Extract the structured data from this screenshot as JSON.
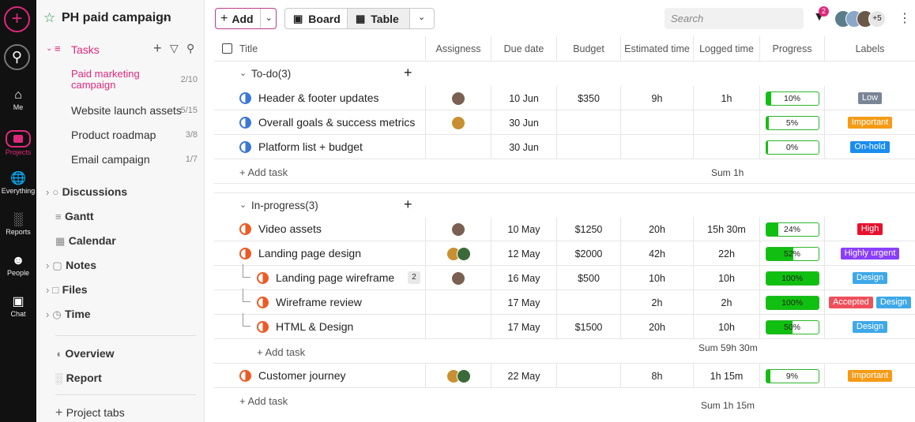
{
  "rail": {
    "items": [
      {
        "name": "add",
        "icon": "plus-icon",
        "label": ""
      },
      {
        "name": "search",
        "icon": "search-icon",
        "label": ""
      },
      {
        "name": "me",
        "icon": "home-icon",
        "label": "Me"
      },
      {
        "name": "projects",
        "icon": "folder-icon",
        "label": "Projects"
      },
      {
        "name": "everything",
        "icon": "globe-icon",
        "label": "Everything"
      },
      {
        "name": "reports",
        "icon": "bar-chart-icon",
        "label": "Reports"
      },
      {
        "name": "people",
        "icon": "people-icon",
        "label": "People"
      },
      {
        "name": "chat",
        "icon": "chat-icon",
        "label": "Chat"
      }
    ],
    "active_color": "#e0287a"
  },
  "sidebar": {
    "project_title": "PH paid campaign",
    "tasks_label": "Tasks",
    "task_lists": [
      {
        "label": "Paid marketing campaign",
        "count": "2/10",
        "active": true
      },
      {
        "label": "Website launch assets",
        "count": "5/15"
      },
      {
        "label": "Product roadmap",
        "count": "3/8"
      },
      {
        "label": "Email campaign",
        "count": "1/7"
      }
    ],
    "sections": [
      "Discussions",
      "Gantt",
      "Calendar",
      "Notes",
      "Files",
      "Time"
    ],
    "extras": [
      "Overview",
      "Report"
    ],
    "project_tabs_label": "Project tabs",
    "accent": "#e0287a"
  },
  "toolbar": {
    "add_label": "Add",
    "board_label": "Board",
    "table_label": "Table",
    "search_placeholder": "Search",
    "filter_count": "2",
    "more_members": "+5"
  },
  "table": {
    "columns": [
      "Title",
      "Assigness",
      "Due date",
      "Budget",
      "Estimated time",
      "Logged time",
      "Progress",
      "Labels"
    ],
    "groups": [
      {
        "name": "To-do(3)",
        "add_task": "+ Add task",
        "sum": "Sum 1h"
      },
      {
        "name": "In-progress(3)",
        "add_task": "+ Add task",
        "sum": "Sum 1h 15m",
        "sub_add": "+ Add task",
        "sub_sum": "Sum 59h 30m"
      }
    ],
    "rows": [
      {
        "title": "Header & footer updates",
        "due": "10 Jun",
        "budget": "$350",
        "est": "9h",
        "logged": "1h",
        "progress": 10,
        "ptext": "10%",
        "labels": [
          {
            "t": "Low",
            "c": "#7a8596"
          }
        ]
      },
      {
        "title": "Overall goals & success metrics",
        "due": "30 Jun",
        "budget": "",
        "est": "",
        "logged": "",
        "progress": 5,
        "ptext": "5%",
        "labels": [
          {
            "t": "Important",
            "c": "#f59b16"
          }
        ]
      },
      {
        "title": "Platform list + budget",
        "due": "30 Jun",
        "budget": "",
        "est": "",
        "logged": "",
        "progress": 0,
        "ptext": "0%",
        "labels": [
          {
            "t": "On-hold",
            "c": "#1a8cf0"
          }
        ]
      },
      {
        "title": "Video assets",
        "due": "10 May",
        "budget": "$1250",
        "est": "20h",
        "logged": "15h 30m",
        "progress": 24,
        "ptext": "24%",
        "labels": [
          {
            "t": "High",
            "c": "#e8112d"
          }
        ]
      },
      {
        "title": "Landing page design",
        "due": "12 May",
        "budget": "$2000",
        "est": "42h",
        "logged": "22h",
        "progress": 52,
        "ptext": "52%",
        "labels": [
          {
            "t": "Highly urgent",
            "c": "#8a3ffc"
          }
        ]
      },
      {
        "title": "Landing page wireframe",
        "badge": "2",
        "due": "16 May",
        "budget": "$500",
        "est": "10h",
        "logged": "10h",
        "progress": 100,
        "ptext": "100%",
        "labels": [
          {
            "t": "Design",
            "c": "#3ea8e8"
          }
        ]
      },
      {
        "title": "Wireframe review",
        "due": "17 May",
        "budget": "",
        "est": "2h",
        "logged": "2h",
        "progress": 100,
        "ptext": "100%",
        "labels": [
          {
            "t": "Accepted",
            "c": "#ef4f5a"
          },
          {
            "t": "Design",
            "c": "#3ea8e8"
          }
        ]
      },
      {
        "title": "HTML & Design",
        "due": "17 May",
        "budget": "$1500",
        "est": "20h",
        "logged": "10h",
        "progress": 50,
        "ptext": "50%",
        "labels": [
          {
            "t": "Design",
            "c": "#3ea8e8"
          }
        ]
      },
      {
        "title": "Customer journey",
        "due": "22 May",
        "budget": "",
        "est": "8h",
        "logged": "1h 15m",
        "progress": 9,
        "ptext": "9%",
        "labels": [
          {
            "t": "Important",
            "c": "#f59b16"
          }
        ]
      }
    ]
  }
}
